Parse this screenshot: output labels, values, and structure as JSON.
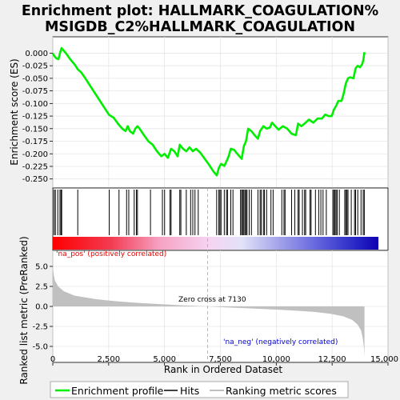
{
  "title_line1": "Enrichment plot: HALLMARK_COAGULATION%",
  "title_line2": "MSIGDB_C2%HALLMARK_COAGULATION",
  "colors": {
    "enrichment_line": "#00ee00",
    "hits": "#000000",
    "ranking_fill": "#c0c0c0",
    "pos_label": "#dd0000",
    "neg_label": "#0000cc",
    "panel_bg": "#ffffff",
    "page_bg": "#f0f0f0"
  },
  "chart_data": [
    {
      "type": "line",
      "name": "enrichment-profile",
      "ylabel": "Enrichment score (ES)",
      "xlim": [
        0,
        15000
      ],
      "ylim": [
        -0.26,
        0.015
      ],
      "y_ticks": [
        "0.000",
        "-0.025",
        "-0.050",
        "-0.075",
        "-0.100",
        "-0.125",
        "-0.150",
        "-0.175",
        "-0.200",
        "-0.225",
        "-0.250"
      ],
      "y_tick_values": [
        0,
        -0.025,
        -0.05,
        -0.075,
        -0.1,
        -0.125,
        -0.15,
        -0.175,
        -0.2,
        -0.225,
        -0.25
      ],
      "grid": true,
      "points": [
        [
          0,
          0.0
        ],
        [
          60,
          -0.005
        ],
        [
          150,
          -0.01
        ],
        [
          260,
          -0.012
        ],
        [
          330,
          0.0
        ],
        [
          400,
          0.01
        ],
        [
          600,
          0.0
        ],
        [
          800,
          -0.012
        ],
        [
          1000,
          -0.022
        ],
        [
          1150,
          -0.032
        ],
        [
          1300,
          -0.038
        ],
        [
          1500,
          -0.05
        ],
        [
          1800,
          -0.07
        ],
        [
          2100,
          -0.09
        ],
        [
          2400,
          -0.11
        ],
        [
          2600,
          -0.123
        ],
        [
          2800,
          -0.128
        ],
        [
          3000,
          -0.14
        ],
        [
          3200,
          -0.15
        ],
        [
          3350,
          -0.155
        ],
        [
          3450,
          -0.145
        ],
        [
          3550,
          -0.155
        ],
        [
          3700,
          -0.16
        ],
        [
          3800,
          -0.15
        ],
        [
          3900,
          -0.145
        ],
        [
          4000,
          -0.15
        ],
        [
          4200,
          -0.163
        ],
        [
          4400,
          -0.175
        ],
        [
          4600,
          -0.182
        ],
        [
          4800,
          -0.195
        ],
        [
          5000,
          -0.205
        ],
        [
          5150,
          -0.2
        ],
        [
          5300,
          -0.208
        ],
        [
          5450,
          -0.19
        ],
        [
          5600,
          -0.195
        ],
        [
          5750,
          -0.205
        ],
        [
          5850,
          -0.182
        ],
        [
          6000,
          -0.19
        ],
        [
          6150,
          -0.195
        ],
        [
          6300,
          -0.187
        ],
        [
          6450,
          -0.195
        ],
        [
          6600,
          -0.19
        ],
        [
          6800,
          -0.198
        ],
        [
          7000,
          -0.21
        ],
        [
          7200,
          -0.222
        ],
        [
          7400,
          -0.235
        ],
        [
          7550,
          -0.243
        ],
        [
          7650,
          -0.228
        ],
        [
          7750,
          -0.22
        ],
        [
          7900,
          -0.224
        ],
        [
          8000,
          -0.215
        ],
        [
          8100,
          -0.205
        ],
        [
          8200,
          -0.19
        ],
        [
          8350,
          -0.192
        ],
        [
          8500,
          -0.2
        ],
        [
          8700,
          -0.21
        ],
        [
          8800,
          -0.185
        ],
        [
          8900,
          -0.175
        ],
        [
          9000,
          -0.15
        ],
        [
          9150,
          -0.155
        ],
        [
          9300,
          -0.163
        ],
        [
          9450,
          -0.17
        ],
        [
          9550,
          -0.155
        ],
        [
          9700,
          -0.145
        ],
        [
          9850,
          -0.15
        ],
        [
          10000,
          -0.148
        ],
        [
          10100,
          -0.138
        ],
        [
          10250,
          -0.145
        ],
        [
          10400,
          -0.152
        ],
        [
          10600,
          -0.145
        ],
        [
          10800,
          -0.15
        ],
        [
          11000,
          -0.16
        ],
        [
          11200,
          -0.163
        ],
        [
          11300,
          -0.14
        ],
        [
          11450,
          -0.145
        ],
        [
          11600,
          -0.14
        ],
        [
          11800,
          -0.132
        ],
        [
          12000,
          -0.138
        ],
        [
          12200,
          -0.13
        ],
        [
          12400,
          -0.13
        ],
        [
          12550,
          -0.122
        ],
        [
          12700,
          -0.125
        ],
        [
          12850,
          -0.125
        ],
        [
          12950,
          -0.112
        ],
        [
          13050,
          -0.105
        ],
        [
          13150,
          -0.095
        ],
        [
          13300,
          -0.095
        ],
        [
          13400,
          -0.08
        ],
        [
          13500,
          -0.06
        ],
        [
          13600,
          -0.05
        ],
        [
          13700,
          -0.048
        ],
        [
          13850,
          -0.05
        ],
        [
          13950,
          -0.03
        ],
        [
          14050,
          -0.025
        ],
        [
          14150,
          -0.028
        ],
        [
          14250,
          -0.022
        ],
        [
          14300,
          -0.015
        ],
        [
          14360,
          0.002
        ]
      ]
    },
    {
      "type": "hits",
      "name": "gene-hits",
      "xlim": [
        0,
        15000
      ],
      "positions": [
        60,
        120,
        230,
        330,
        380,
        410,
        1150,
        2600,
        3050,
        3400,
        3500,
        3750,
        3850,
        3900,
        4500,
        5050,
        5150,
        5400,
        5450,
        5850,
        5900,
        6150,
        6350,
        6450,
        6550,
        6700,
        7550,
        7650,
        7700,
        7750,
        7900,
        8000,
        8050,
        8200,
        8300,
        8650,
        8700,
        8750,
        8800,
        8850,
        8900,
        8950,
        9050,
        9150,
        9450,
        9550,
        9600,
        9700,
        9750,
        9850,
        10050,
        10150,
        10550,
        10650,
        10700,
        11000,
        11150,
        11300,
        11350,
        11500,
        11600,
        11650,
        11850,
        11900,
        12100,
        12250,
        12350,
        12450,
        12600,
        12900,
        12950,
        13000,
        13050,
        13100,
        13200,
        13450,
        13500,
        13550,
        13600,
        13750,
        13900,
        13950,
        14050,
        14200,
        14300,
        14350
      ]
    },
    {
      "type": "area",
      "name": "ranking-metric",
      "xlabel": "Rank in Ordered Dataset",
      "ylabel": "Ranked list metric (PreRanked)",
      "xlim": [
        0,
        15000
      ],
      "ylim": [
        -7,
        7
      ],
      "x_ticks": [
        "0",
        "2,500",
        "5,000",
        "7,500",
        "10,000",
        "12,500",
        "15,000"
      ],
      "x_tick_values": [
        0,
        2500,
        5000,
        7500,
        10000,
        12500,
        15000
      ],
      "y_ticks": [
        "5.0",
        "2.5",
        "0.0",
        "-2.5",
        "-5.0"
      ],
      "y_tick_values": [
        5,
        2.5,
        0,
        -2.5,
        -5
      ],
      "points": [
        [
          0,
          5.0
        ],
        [
          40,
          4.0
        ],
        [
          100,
          3.2
        ],
        [
          250,
          2.5
        ],
        [
          500,
          1.9
        ],
        [
          1000,
          1.35
        ],
        [
          2000,
          0.9
        ],
        [
          3000,
          0.62
        ],
        [
          4000,
          0.42
        ],
        [
          5000,
          0.27
        ],
        [
          6000,
          0.13
        ],
        [
          7130,
          0.0
        ],
        [
          8000,
          -0.12
        ],
        [
          9000,
          -0.24
        ],
        [
          10000,
          -0.36
        ],
        [
          11000,
          -0.5
        ],
        [
          12000,
          -0.68
        ],
        [
          12800,
          -0.92
        ],
        [
          13400,
          -1.25
        ],
        [
          13800,
          -1.7
        ],
        [
          14050,
          -2.3
        ],
        [
          14200,
          -3.0
        ],
        [
          14280,
          -4.0
        ],
        [
          14330,
          -5.0
        ],
        [
          14360,
          -6.2
        ]
      ],
      "zero_cross_rank": 7130,
      "zero_cross_label": "Zero cross at 7130",
      "pos_label": "'na_pos' (positively correlated)",
      "neg_label": "'na_neg' (negatively correlated)"
    }
  ],
  "legend": {
    "items": [
      {
        "label": "Enrichment profile",
        "color": "#00ee00"
      },
      {
        "label": "Hits",
        "color": "#000000"
      },
      {
        "label": "Ranking metric scores",
        "color": "#c0c0c0"
      }
    ]
  }
}
